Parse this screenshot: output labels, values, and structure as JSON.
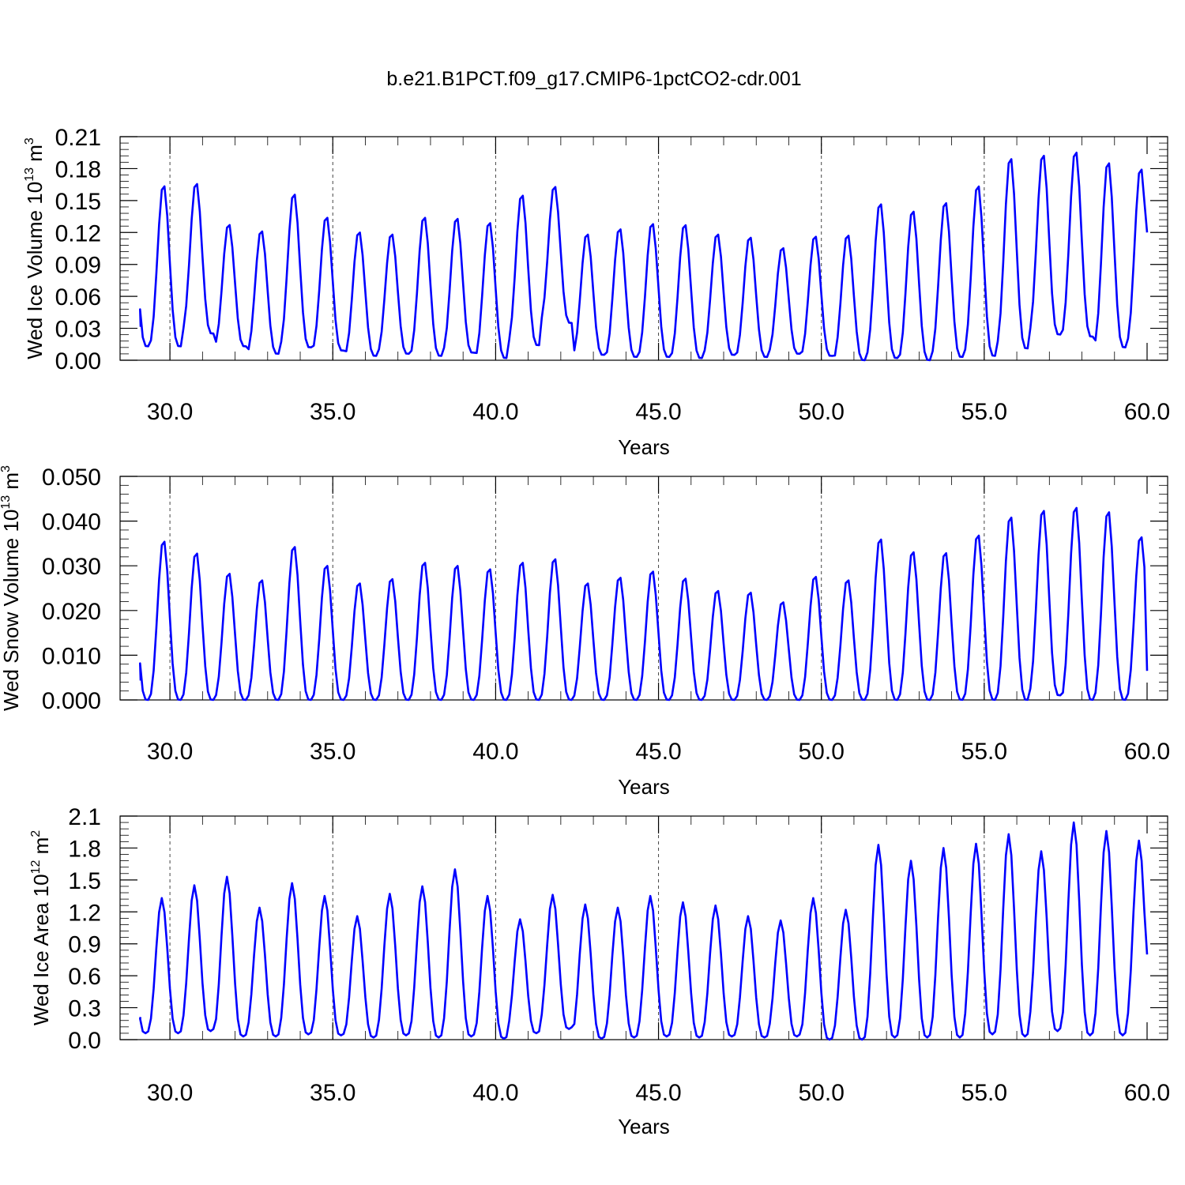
{
  "title": "b.e21.B1PCT.f09_g17.CMIP6-1pctCO2-cdr.001",
  "colors": {
    "series": "#0000ff",
    "grid": "#444444",
    "axes": "#000000"
  },
  "chart_data": [
    {
      "type": "line",
      "title": "b.e21.B1PCT.f09_g17.CMIP6-1pctCO2-cdr.001",
      "xlabel": "Years",
      "ylabel": {
        "prefix": "Wed Ice Volume 10",
        "exponent": "13",
        "unit": " m",
        "unit_exponent": "3"
      },
      "xlim": [
        29.1,
        60.0
      ],
      "ylim": [
        0.0,
        0.21
      ],
      "xticks": [
        30,
        35,
        40,
        45,
        50,
        55,
        60
      ],
      "xtick_labels": [
        "30.0",
        "35.0",
        "40.0",
        "45.0",
        "50.0",
        "55.0",
        "60.0"
      ],
      "yticks": [
        0.0,
        0.03,
        0.06,
        0.09,
        0.12,
        0.15,
        0.18,
        0.21
      ],
      "ytick_labels": [
        "0.00",
        "0.03",
        "0.06",
        "0.09",
        "0.12",
        "0.15",
        "0.18",
        "0.21"
      ],
      "grid": "vertical dashed at major x ticks",
      "cycle_phase": 0.8,
      "annual_minima": [
        0.013,
        0.025,
        0.013,
        0.006,
        0.012,
        0.009,
        0.004,
        0.006,
        0.004,
        0.007,
        0.002,
        0.014,
        0.035,
        0.005,
        0.003,
        0.003,
        0.002,
        0.005,
        0.003,
        0.006,
        0.004,
        0.0,
        0.002,
        0.0,
        0.003,
        0.004,
        0.011,
        0.024,
        0.022,
        0.012,
        0.014
      ],
      "annual_maxima": [
        0.166,
        0.168,
        0.129,
        0.123,
        0.158,
        0.136,
        0.122,
        0.12,
        0.136,
        0.135,
        0.131,
        0.157,
        0.165,
        0.12,
        0.125,
        0.13,
        0.129,
        0.12,
        0.117,
        0.107,
        0.118,
        0.119,
        0.149,
        0.142,
        0.15,
        0.166,
        0.192,
        0.195,
        0.198,
        0.188,
        0.182
      ],
      "end_value": 0.12
    },
    {
      "type": "line",
      "xlabel": "Years",
      "ylabel": {
        "prefix": "Wed Snow Volume 10",
        "exponent": "13",
        "unit": " m",
        "unit_exponent": "3"
      },
      "xlim": [
        29.1,
        60.0
      ],
      "ylim": [
        0.0,
        0.05
      ],
      "xticks": [
        30,
        35,
        40,
        45,
        50,
        55,
        60
      ],
      "xtick_labels": [
        "30.0",
        "35.0",
        "40.0",
        "45.0",
        "50.0",
        "55.0",
        "60.0"
      ],
      "yticks": [
        0.0,
        0.01,
        0.02,
        0.03,
        0.04,
        0.05
      ],
      "ytick_labels": [
        "0.000",
        "0.010",
        "0.020",
        "0.030",
        "0.040",
        "0.050"
      ],
      "grid": "vertical dashed at major x ticks",
      "cycle_phase": 0.8,
      "annual_minima": [
        0.0,
        0.0,
        0.0,
        0.0,
        0.0,
        0.0,
        0.0,
        0.0,
        0.0,
        0.0,
        0.0,
        0.0,
        0.0,
        0.0,
        0.0,
        0.0,
        0.0,
        0.0,
        0.0,
        0.0,
        0.0,
        0.0,
        0.0,
        0.0,
        0.0,
        0.0,
        0.0,
        0.001,
        0.0,
        0.0,
        0.0
      ],
      "annual_maxima": [
        0.036,
        0.0333,
        0.0287,
        0.0272,
        0.0348,
        0.0305,
        0.0265,
        0.0275,
        0.0312,
        0.0305,
        0.0297,
        0.0312,
        0.032,
        0.0265,
        0.0278,
        0.0292,
        0.0276,
        0.0248,
        0.0244,
        0.0222,
        0.028,
        0.0272,
        0.0365,
        0.0336,
        0.0334,
        0.0374,
        0.0415,
        0.043,
        0.0437,
        0.0427,
        0.037
      ],
      "end_value": 0.0065
    },
    {
      "type": "line",
      "xlabel": "Years",
      "ylabel": {
        "prefix": "Wed Ice Area 10",
        "exponent": "12",
        "unit": " m",
        "unit_exponent": "2"
      },
      "xlim": [
        29.1,
        60.0
      ],
      "ylim": [
        0.0,
        2.1
      ],
      "xticks": [
        30,
        35,
        40,
        45,
        50,
        55,
        60
      ],
      "xtick_labels": [
        "30.0",
        "35.0",
        "40.0",
        "45.0",
        "50.0",
        "55.0",
        "60.0"
      ],
      "yticks": [
        0.0,
        0.3,
        0.6,
        0.9,
        1.2,
        1.5,
        1.8,
        2.1
      ],
      "ytick_labels": [
        "0.0",
        "0.3",
        "0.6",
        "0.9",
        "1.2",
        "1.5",
        "1.8",
        "2.1"
      ],
      "grid": "vertical dashed at major x ticks",
      "cycle_phase": 0.75,
      "annual_minima": [
        0.06,
        0.08,
        0.03,
        0.03,
        0.05,
        0.04,
        0.02,
        0.04,
        0.02,
        0.03,
        0.01,
        0.06,
        0.1,
        0.01,
        0.02,
        0.03,
        0.02,
        0.03,
        0.02,
        0.03,
        0.0,
        0.0,
        0.02,
        0.02,
        0.02,
        0.05,
        0.03,
        0.08,
        0.04,
        0.04,
        0.05
      ],
      "annual_maxima": [
        1.33,
        1.45,
        1.53,
        1.24,
        1.47,
        1.35,
        1.16,
        1.37,
        1.44,
        1.6,
        1.35,
        1.13,
        1.36,
        1.27,
        1.24,
        1.35,
        1.29,
        1.26,
        1.16,
        1.12,
        1.33,
        1.22,
        1.83,
        1.68,
        1.8,
        1.84,
        1.93,
        1.77,
        2.04,
        1.96,
        1.87
      ],
      "end_value": 0.8
    }
  ]
}
